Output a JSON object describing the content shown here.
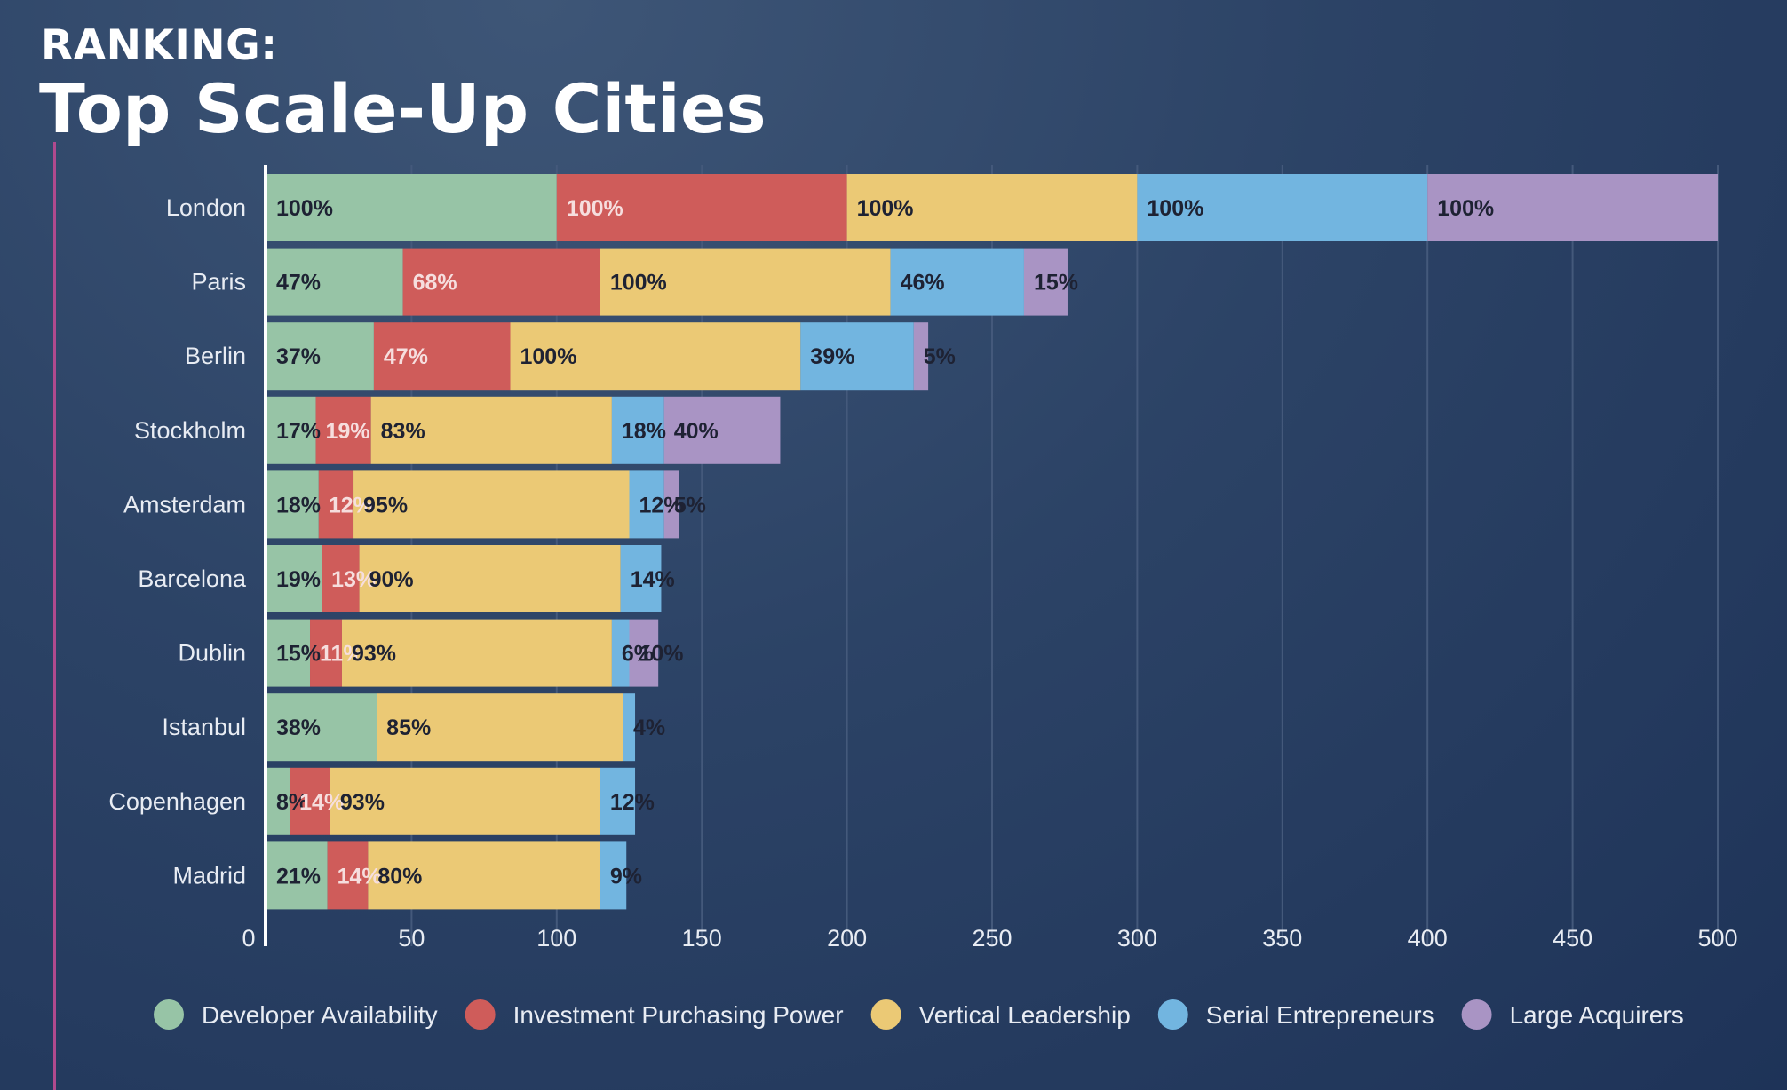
{
  "header": {
    "kicker": "RANKING:",
    "title": "Top Scale-Up Cities"
  },
  "chart_data": {
    "type": "bar",
    "orientation": "horizontal",
    "stacked": true,
    "categories": [
      "London",
      "Paris",
      "Berlin",
      "Stockholm",
      "Amsterdam",
      "Barcelona",
      "Dublin",
      "Istanbul",
      "Copenhagen",
      "Madrid"
    ],
    "series": [
      {
        "name": "Developer Availability",
        "color": "#97c4a6",
        "label_color": "#1e2233",
        "values": [
          100,
          47,
          37,
          17,
          18,
          19,
          15,
          38,
          8,
          21
        ],
        "labels": [
          "100%",
          "47%",
          "37%",
          "17%",
          "18%",
          "19%",
          "15%",
          "38%",
          "8%",
          "21%"
        ]
      },
      {
        "name": "Investment Purchasing Power",
        "color": "#cf5c5a",
        "label_color": "#f6dede",
        "values": [
          100,
          68,
          47,
          19,
          12,
          13,
          11,
          0,
          14,
          14
        ],
        "labels": [
          "100%",
          "68%",
          "47%",
          "19%",
          "12%",
          "13%",
          "11%",
          "",
          "14%",
          "14%"
        ]
      },
      {
        "name": "Vertical Leadership",
        "color": "#ebc975",
        "label_color": "#1e2233",
        "values": [
          100,
          100,
          100,
          83,
          95,
          90,
          93,
          85,
          93,
          80
        ],
        "labels": [
          "100%",
          "100%",
          "100%",
          "83%",
          "95%",
          "90%",
          "93%",
          "85%",
          "93%",
          "80%"
        ]
      },
      {
        "name": "Serial Entrepreneurs",
        "color": "#72b5e0",
        "label_color": "#1e2233",
        "values": [
          100,
          46,
          39,
          18,
          12,
          14,
          6,
          4,
          12,
          9
        ],
        "labels": [
          "100%",
          "46%",
          "39%",
          "18%",
          "12%",
          "14%",
          "6%",
          "4%",
          "12%",
          "9%"
        ]
      },
      {
        "name": "Large Acquirers",
        "color": "#a994c4",
        "label_color": "#1e2233",
        "values": [
          100,
          15,
          5,
          40,
          5,
          0,
          10,
          0,
          0,
          0
        ],
        "labels": [
          "100%",
          "15%",
          "5%",
          "40%",
          "5%",
          "",
          "10%",
          "",
          "",
          ""
        ]
      }
    ],
    "xlim": [
      0,
      500
    ],
    "xticks": [
      "0",
      "50",
      "100",
      "150",
      "200",
      "250",
      "300",
      "350",
      "400",
      "450",
      "500"
    ],
    "grid": "vertical",
    "legend_position": "bottom",
    "colors": {
      "grid": "#44597b",
      "axis": "#ffffff",
      "accent_rule": "#b04a8e"
    }
  }
}
